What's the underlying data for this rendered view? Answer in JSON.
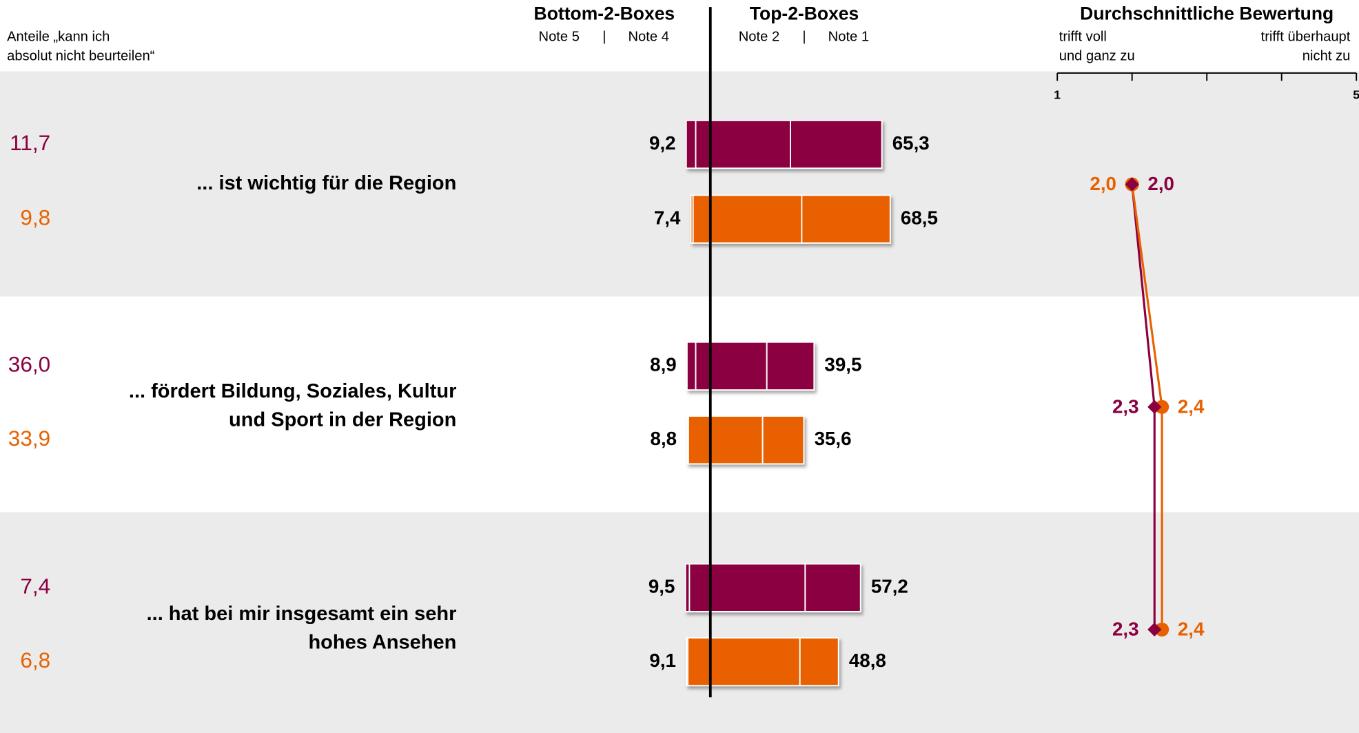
{
  "chart_data": {
    "type": "diverging-bar",
    "left_note": [
      "Anteile „kann ich",
      "absolut nicht beurteilen“"
    ],
    "bottom_title": "Bottom-2-Boxes",
    "bottom_notes": [
      "Note 5",
      "Note 4"
    ],
    "top_title": "Top-2-Boxes",
    "top_notes": [
      "Note 2",
      "Note 1"
    ],
    "note_separator": "|",
    "rating_title": "Durchschnittliche Bewertung",
    "rating_left": [
      "trifft voll",
      "und ganz zu"
    ],
    "rating_right": [
      "trifft überhaupt",
      "nicht zu"
    ],
    "xlim": [
      1,
      5
    ],
    "xticks": [
      1,
      2,
      3,
      4,
      5
    ],
    "categories": [
      [
        "... ist wichtig für die Region"
      ],
      [
        "... fördert Bildung, Soziales, Kultur",
        "und Sport in der Region"
      ],
      [
        "... hat bei mir insgesamt ein sehr",
        "hohes Ansehen"
      ]
    ],
    "series": [
      {
        "color": "#8a0040",
        "marker": "diamond",
        "cannot_judge": [
          11.7,
          36.0,
          7.4
        ],
        "cannot_judge_labels": [
          "11,7",
          "36,0",
          "7,4"
        ],
        "note5": [
          3.6,
          3.3,
          1.5
        ],
        "note4": [
          5.6,
          5.6,
          8.0
        ],
        "note2": [
          30.5,
          21.5,
          36.1
        ],
        "note1": [
          34.8,
          18.0,
          21.1
        ],
        "bottom2": [
          9.2,
          8.9,
          9.5
        ],
        "bottom2_labels": [
          "9,2",
          "8,9",
          "9,5"
        ],
        "top2": [
          65.3,
          39.5,
          57.2
        ],
        "top2_labels": [
          "65,3",
          "39,5",
          "57,2"
        ],
        "mean": [
          2.0,
          2.3,
          2.3
        ],
        "mean_labels": [
          "2,0",
          "2,3",
          "2,3"
        ]
      },
      {
        "color": "#e86100",
        "marker": "circle",
        "cannot_judge": [
          9.8,
          33.9,
          6.8
        ],
        "cannot_judge_labels": [
          "9,8",
          "33,9",
          "6,8"
        ],
        "note5": [
          0.8,
          0.4,
          0.5
        ],
        "note4": [
          6.6,
          8.4,
          8.6
        ],
        "note2": [
          34.8,
          19.9,
          34.1
        ],
        "note1": [
          33.7,
          15.7,
          14.7
        ],
        "bottom2": [
          7.4,
          8.8,
          9.1
        ],
        "bottom2_labels": [
          "7,4",
          "8,8",
          "9,1"
        ],
        "top2": [
          68.5,
          35.6,
          48.8
        ],
        "top2_labels": [
          "68,5",
          "35,6",
          "48,8"
        ],
        "mean": [
          2.0,
          2.4,
          2.4
        ],
        "mean_labels": [
          "2,0",
          "2,4",
          "2,4"
        ]
      }
    ]
  }
}
